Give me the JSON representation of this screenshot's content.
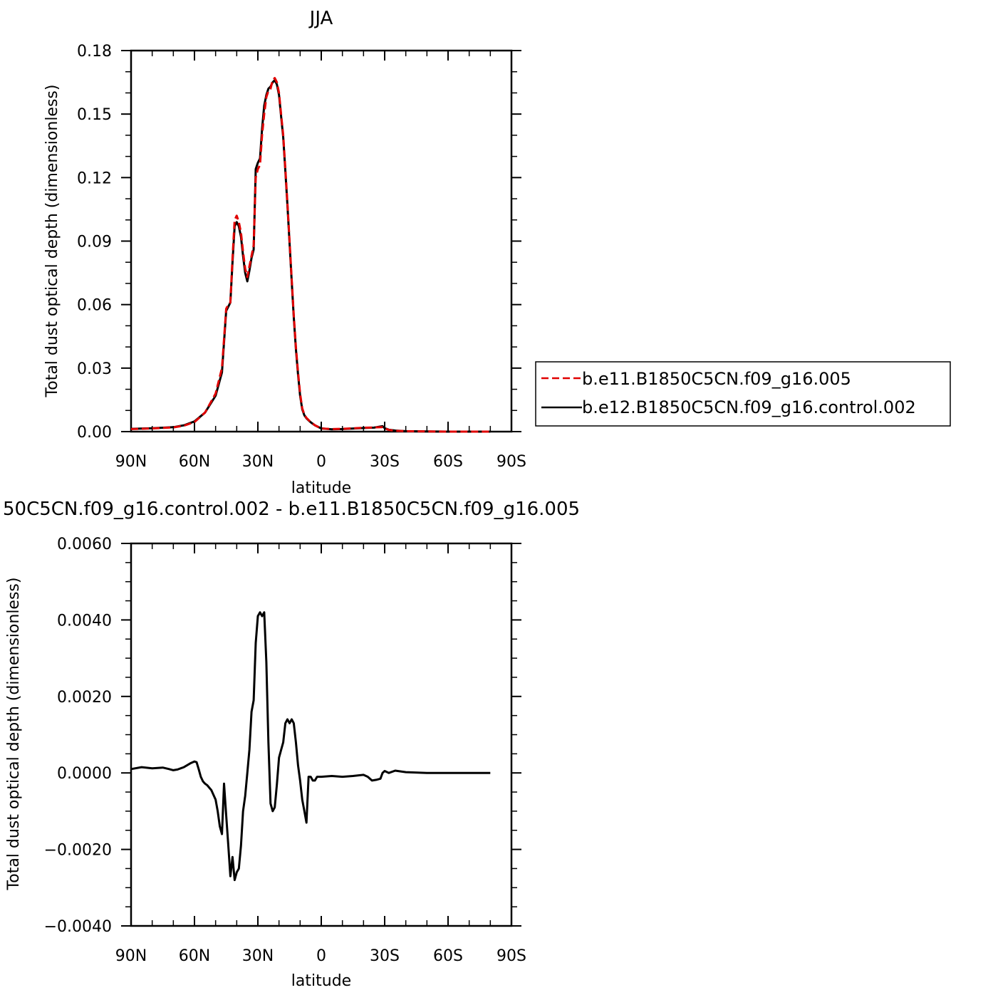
{
  "chart_data": [
    {
      "type": "line",
      "title": "JJA",
      "xlabel": "latitude",
      "ylabel": "Total dust optical depth (dimensionless)",
      "x_ticks": [
        "90N",
        "60N",
        "30N",
        "0",
        "30S",
        "60S",
        "90S"
      ],
      "x_tick_values": [
        90,
        60,
        30,
        0,
        -30,
        -60,
        -90
      ],
      "xlim": [
        90,
        -90
      ],
      "ylim": [
        0,
        0.18
      ],
      "y_ticks": [
        "0.00",
        "0.03",
        "0.06",
        "0.09",
        "0.12",
        "0.15",
        "0.18"
      ],
      "y_tick_values": [
        0,
        0.03,
        0.06,
        0.09,
        0.12,
        0.15,
        0.18
      ],
      "grid": false,
      "legend": {
        "position": "right",
        "entries": [
          {
            "label": "b.e11.B1850C5CN.f09_g16.005",
            "color": "#e00000",
            "style": "dashed"
          },
          {
            "label": "b.e12.B1850C5CN.f09_g16.control.002",
            "color": "#000000",
            "style": "solid"
          }
        ]
      },
      "series": [
        {
          "name": "b.e11.B1850C5CN.f09_g16.005",
          "color": "#e00000",
          "style": "dashed",
          "x": [
            90,
            80,
            70,
            65,
            60,
            55,
            50,
            47,
            45,
            44,
            43,
            42,
            41,
            40,
            39,
            38,
            37,
            36,
            35,
            34,
            33,
            32,
            31,
            30,
            29,
            28,
            27,
            26,
            25,
            24,
            23,
            22,
            21,
            20,
            19,
            18,
            17,
            16,
            15,
            14,
            13,
            12,
            11,
            10,
            9,
            8,
            7,
            6,
            5,
            4,
            3,
            2,
            0,
            -5,
            -10,
            -20,
            -25,
            -29,
            -30,
            -32,
            -35,
            -40,
            -50,
            -60,
            -70,
            -80
          ],
          "y": [
            0.0012,
            0.0015,
            0.002,
            0.0028,
            0.0045,
            0.009,
            0.018,
            0.03,
            0.058,
            0.06,
            0.061,
            0.082,
            0.1,
            0.102,
            0.099,
            0.094,
            0.085,
            0.077,
            0.073,
            0.078,
            0.083,
            0.088,
            0.12,
            0.124,
            0.126,
            0.14,
            0.15,
            0.158,
            0.161,
            0.162,
            0.166,
            0.167,
            0.165,
            0.16,
            0.15,
            0.14,
            0.124,
            0.108,
            0.09,
            0.072,
            0.055,
            0.04,
            0.028,
            0.018,
            0.011,
            0.008,
            0.0065,
            0.0055,
            0.0045,
            0.0038,
            0.003,
            0.0025,
            0.0015,
            0.0012,
            0.0013,
            0.0018,
            0.002,
            0.0021,
            0.0015,
            0.0008,
            0.0004,
            0.0002,
            0.0001,
            0.0,
            0.0,
            0.0
          ]
        },
        {
          "name": "b.e12.B1850C5CN.f09_g16.control.002",
          "color": "#000000",
          "style": "solid",
          "x": [
            90,
            80,
            70,
            65,
            60,
            55,
            50,
            47,
            45,
            44,
            43,
            42,
            41,
            40,
            39,
            38,
            37,
            36,
            35,
            34,
            33,
            32,
            31,
            30,
            29,
            28,
            27,
            26,
            25,
            24,
            23,
            22,
            21,
            20,
            19,
            18,
            17,
            16,
            15,
            14,
            13,
            12,
            11,
            10,
            9,
            8,
            7,
            6,
            5,
            4,
            3,
            2,
            0,
            -5,
            -10,
            -20,
            -25,
            -29,
            -30,
            -32,
            -35,
            -40,
            -50,
            -60,
            -70,
            -80
          ],
          "y": [
            0.0013,
            0.0016,
            0.0021,
            0.003,
            0.0048,
            0.009,
            0.017,
            0.028,
            0.057,
            0.059,
            0.061,
            0.08,
            0.097,
            0.099,
            0.097,
            0.092,
            0.083,
            0.075,
            0.071,
            0.076,
            0.082,
            0.086,
            0.124,
            0.127,
            0.129,
            0.143,
            0.154,
            0.159,
            0.162,
            0.163,
            0.165,
            0.166,
            0.164,
            0.159,
            0.149,
            0.139,
            0.123,
            0.107,
            0.089,
            0.071,
            0.054,
            0.039,
            0.027,
            0.017,
            0.0105,
            0.0077,
            0.0063,
            0.0053,
            0.0044,
            0.0037,
            0.003,
            0.0025,
            0.0015,
            0.0011,
            0.0012,
            0.0017,
            0.0019,
            0.0026,
            0.0016,
            0.0009,
            0.0005,
            0.0002,
            0.0001,
            0.0,
            0.0,
            0.0
          ]
        }
      ]
    },
    {
      "type": "line",
      "title": "50C5CN.f09_g16.control.002 - b.e11.B1850C5CN.f09_g16.005",
      "xlabel": "latitude",
      "ylabel": "Total dust optical depth (dimensionless)",
      "x_ticks": [
        "90N",
        "60N",
        "30N",
        "0",
        "30S",
        "60S",
        "90S"
      ],
      "x_tick_values": [
        90,
        60,
        30,
        0,
        -30,
        -60,
        -90
      ],
      "xlim": [
        90,
        -90
      ],
      "ylim": [
        -0.004,
        0.006
      ],
      "y_ticks": [
        "−0.0040",
        "−0.0020",
        "0.0000",
        "0.0020",
        "0.0040",
        "0.0060"
      ],
      "y_tick_values": [
        -0.004,
        -0.002,
        0,
        0.002,
        0.004,
        0.006
      ],
      "grid": false,
      "series": [
        {
          "color": "#000000",
          "style": "solid",
          "x": [
            90,
            85,
            80,
            75,
            72,
            70,
            68,
            65,
            62,
            60,
            59,
            58,
            57,
            56,
            55,
            54,
            52,
            50,
            49,
            48,
            47,
            46,
            45,
            44,
            43,
            42,
            41,
            40,
            39,
            38,
            37,
            36,
            35,
            34,
            33,
            32,
            31,
            30,
            29,
            28,
            27,
            26,
            25,
            24,
            23,
            22,
            21,
            20,
            19,
            18,
            17,
            16,
            15,
            14,
            13,
            12,
            11,
            10,
            9,
            8,
            7,
            6,
            5,
            4,
            3,
            2,
            1,
            0,
            -5,
            -10,
            -15,
            -20,
            -22,
            -24,
            -26,
            -28,
            -29,
            -30,
            -32,
            -35,
            -40,
            -50,
            -60,
            -70,
            -80
          ],
          "y": [
            0.0001,
            0.00015,
            0.00012,
            0.00014,
            0.0001,
            7e-05,
            9e-05,
            0.00015,
            0.00025,
            0.0003,
            0.00028,
            0.0001,
            -0.0001,
            -0.00022,
            -0.00028,
            -0.00032,
            -0.00045,
            -0.0007,
            -0.001,
            -0.0014,
            -0.0016,
            -0.00028,
            -0.0011,
            -0.0019,
            -0.0027,
            -0.0022,
            -0.0028,
            -0.0026,
            -0.0025,
            -0.0019,
            -0.001,
            -0.0006,
            0.0,
            0.0006,
            0.0016,
            0.0019,
            0.0034,
            0.0041,
            0.0042,
            0.0041,
            0.0042,
            0.0029,
            0.0008,
            -0.0008,
            -0.001,
            -0.0009,
            -0.0003,
            0.0004,
            0.0006,
            0.0008,
            0.0013,
            0.0014,
            0.0013,
            0.0014,
            0.0013,
            0.0008,
            0.0002,
            -0.0002,
            -0.0007,
            -0.001,
            -0.0013,
            -0.0001,
            -0.0001,
            -0.0002,
            -0.0002,
            -0.0001,
            -0.0001,
            -0.0001,
            -8e-05,
            -0.0001,
            -8e-05,
            -5e-05,
            -0.0001,
            -0.0002,
            -0.00018,
            -0.00015,
            0.0,
            5e-05,
            0.0,
            6e-05,
            2e-05,
            0.0,
            0.0,
            0.0,
            0.0
          ]
        }
      ]
    }
  ]
}
